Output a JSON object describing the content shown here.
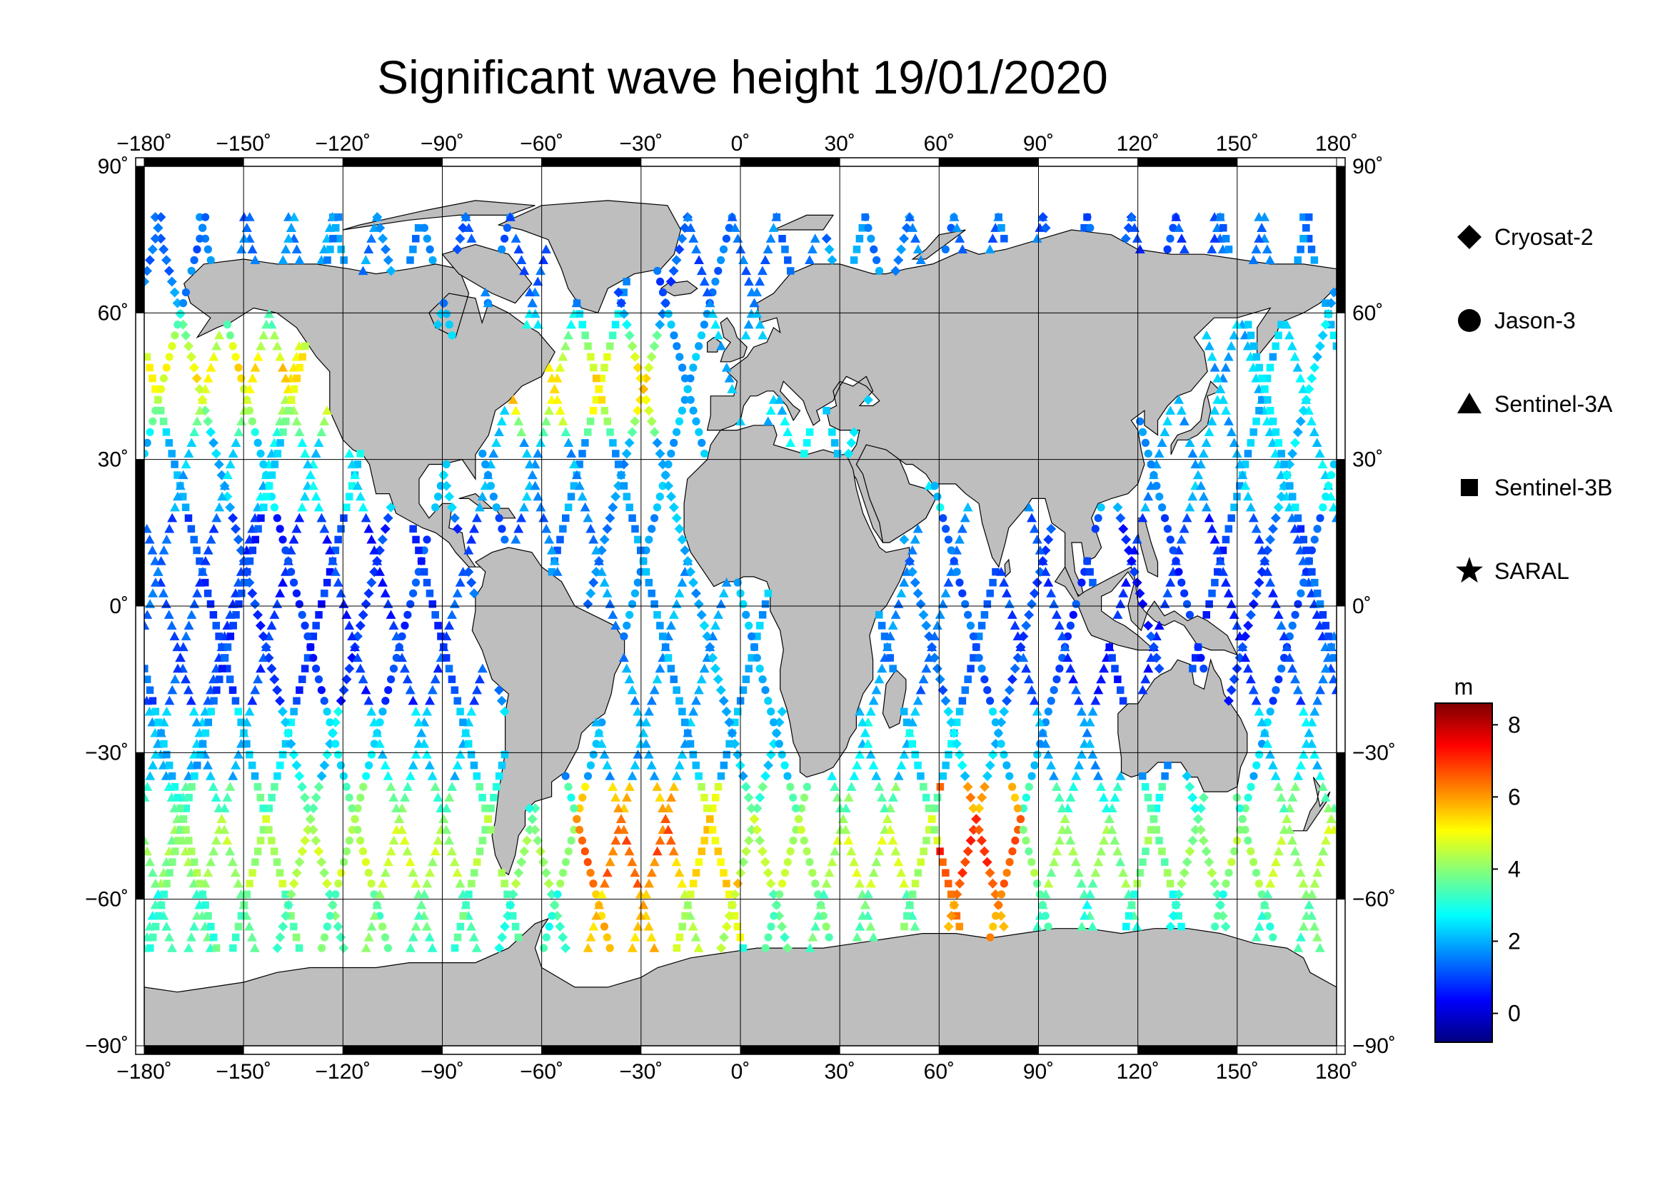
{
  "title": "Significant wave height 19/01/2020",
  "map": {
    "lon_range": [
      -180,
      180
    ],
    "lat_range": [
      -90,
      90
    ],
    "lon_ticks": [
      "−180˚",
      "−150˚",
      "−120˚",
      "−90˚",
      "−60˚",
      "−30˚",
      "0˚",
      "30˚",
      "60˚",
      "90˚",
      "120˚",
      "150˚",
      "180˚"
    ],
    "lat_ticks": [
      "90˚",
      "60˚",
      "30˚",
      "0˚",
      "−30˚",
      "−60˚",
      "−90˚"
    ],
    "land_color": "#bebebe",
    "ocean_color": "#ffffff"
  },
  "legend": {
    "items": [
      {
        "label": "Cryosat-2",
        "symbol": "diamond"
      },
      {
        "label": "Jason-3",
        "symbol": "circle"
      },
      {
        "label": "Sentinel-3A",
        "symbol": "triangle"
      },
      {
        "label": "Sentinel-3B",
        "symbol": "square"
      },
      {
        "label": "SARAL",
        "symbol": "star"
      }
    ]
  },
  "colorbar": {
    "unit": "m",
    "range": [
      -0.8,
      8.6
    ],
    "ticks": [
      "8",
      "6",
      "4",
      "2",
      "0"
    ],
    "colors": [
      "#00007f",
      "#0000ff",
      "#007fff",
      "#00ffff",
      "#7fff7f",
      "#ffff00",
      "#ff7f00",
      "#ff0000",
      "#7f0000"
    ]
  }
}
